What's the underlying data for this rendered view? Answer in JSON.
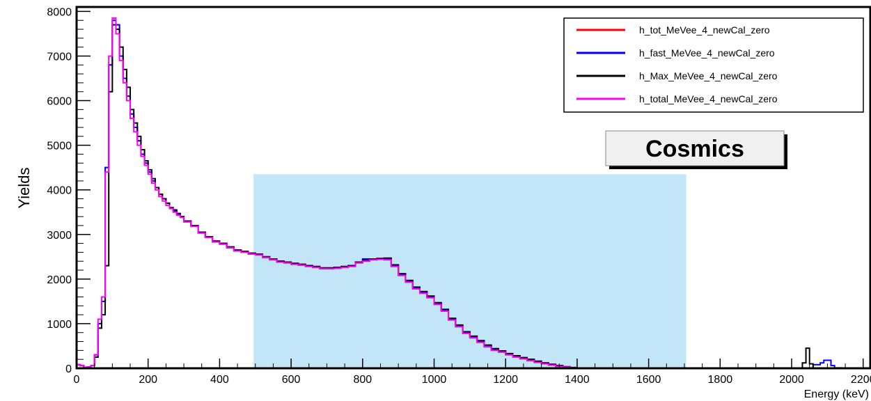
{
  "chart_data": {
    "type": "line",
    "title": "",
    "xlabel": "Energy (keV)",
    "ylabel": "Yields",
    "xlim": [
      0,
      2220
    ],
    "ylim": [
      0,
      8100
    ],
    "xticks": [
      0,
      200,
      400,
      600,
      800,
      1000,
      1200,
      1400,
      1600,
      1800,
      2000,
      2200
    ],
    "yticks": [
      0,
      1000,
      2000,
      3000,
      4000,
      5000,
      6000,
      7000,
      8000
    ],
    "grid": false,
    "legend_position": "top-right",
    "highlight_band": {
      "x0": 495,
      "x1": 1705,
      "y_top": 4350,
      "color": "#c2e5f8"
    },
    "annotation": {
      "text": "Cosmics",
      "position": "right, below legend"
    },
    "x": [
      0,
      10,
      20,
      30,
      40,
      50,
      60,
      70,
      80,
      90,
      100,
      110,
      120,
      130,
      140,
      150,
      160,
      170,
      180,
      190,
      200,
      210,
      220,
      230,
      240,
      250,
      260,
      270,
      280,
      290,
      300,
      320,
      340,
      360,
      380,
      400,
      420,
      440,
      460,
      480,
      500,
      520,
      540,
      560,
      580,
      600,
      620,
      640,
      660,
      680,
      700,
      720,
      740,
      760,
      780,
      800,
      820,
      840,
      860,
      880,
      900,
      920,
      940,
      960,
      980,
      1000,
      1020,
      1040,
      1060,
      1080,
      1100,
      1120,
      1140,
      1160,
      1180,
      1200,
      1220,
      1240,
      1260,
      1280,
      1300,
      1320,
      1340,
      1360,
      1380,
      1400,
      1500,
      1600,
      1700,
      1800,
      1900,
      2000,
      2030,
      2040,
      2050,
      2060,
      2080,
      2090,
      2100,
      2110,
      2120,
      2140,
      2200
    ],
    "series": [
      {
        "name": "h_tot_MeVee_4_newCal_zero",
        "color": "#ff0000",
        "values": [
          80,
          60,
          20,
          30,
          60,
          300,
          1000,
          1500,
          4500,
          6800,
          7800,
          7700,
          7000,
          6500,
          6100,
          5700,
          5400,
          5100,
          4800,
          4600,
          4400,
          4200,
          4050,
          3900,
          3800,
          3700,
          3600,
          3520,
          3450,
          3400,
          3300,
          3200,
          3050,
          2950,
          2850,
          2800,
          2720,
          2650,
          2620,
          2580,
          2560,
          2500,
          2450,
          2400,
          2380,
          2350,
          2330,
          2300,
          2280,
          2250,
          2250,
          2260,
          2280,
          2300,
          2380,
          2420,
          2450,
          2460,
          2450,
          2300,
          2100,
          1950,
          1800,
          1700,
          1600,
          1450,
          1300,
          1100,
          950,
          800,
          700,
          600,
          500,
          420,
          380,
          320,
          270,
          230,
          190,
          150,
          110,
          80,
          50,
          30,
          15,
          8,
          5,
          5,
          5,
          5,
          5,
          5,
          5,
          5,
          5,
          5,
          5,
          5,
          5,
          5,
          5,
          5,
          5
        ]
      },
      {
        "name": "h_fast_MeVee_4_newCal_zero",
        "color": "#0000ff",
        "values": [
          80,
          60,
          20,
          30,
          60,
          300,
          1000,
          1500,
          4500,
          6800,
          7800,
          7700,
          7000,
          6500,
          6100,
          5700,
          5400,
          5100,
          4800,
          4600,
          4400,
          4200,
          4050,
          3900,
          3800,
          3700,
          3600,
          3520,
          3450,
          3400,
          3300,
          3200,
          3050,
          2950,
          2850,
          2800,
          2720,
          2650,
          2620,
          2580,
          2560,
          2500,
          2450,
          2400,
          2380,
          2350,
          2330,
          2300,
          2280,
          2250,
          2250,
          2260,
          2280,
          2300,
          2380,
          2450,
          2450,
          2460,
          2450,
          2300,
          2100,
          1950,
          1800,
          1700,
          1600,
          1450,
          1300,
          1100,
          950,
          800,
          700,
          600,
          500,
          420,
          380,
          320,
          270,
          230,
          190,
          150,
          110,
          80,
          50,
          30,
          15,
          8,
          5,
          5,
          5,
          5,
          5,
          5,
          5,
          5,
          5,
          80,
          120,
          180,
          180,
          60,
          10,
          5,
          5
        ]
      },
      {
        "name": "h_Max_MeVee_4_newCal_zero",
        "color": "#000000",
        "values": [
          80,
          60,
          20,
          30,
          60,
          250,
          900,
          1200,
          2300,
          6200,
          7700,
          7600,
          7200,
          6700,
          6300,
          5800,
          5500,
          5200,
          4900,
          4650,
          4450,
          4250,
          4050,
          3900,
          3800,
          3700,
          3600,
          3550,
          3470,
          3400,
          3300,
          3200,
          3050,
          2950,
          2850,
          2800,
          2720,
          2650,
          2620,
          2580,
          2560,
          2500,
          2450,
          2400,
          2380,
          2350,
          2330,
          2300,
          2280,
          2250,
          2250,
          2260,
          2280,
          2300,
          2380,
          2420,
          2450,
          2460,
          2470,
          2320,
          2120,
          1970,
          1820,
          1720,
          1620,
          1470,
          1320,
          1120,
          970,
          820,
          720,
          620,
          520,
          440,
          390,
          330,
          280,
          240,
          200,
          160,
          120,
          90,
          60,
          35,
          18,
          8,
          5,
          5,
          5,
          5,
          5,
          5,
          120,
          450,
          100,
          5,
          5,
          5,
          5,
          5,
          5,
          5,
          5
        ]
      },
      {
        "name": "h_total_MeVee_4_newCal_zero",
        "color": "#ff00ff",
        "values": [
          80,
          60,
          20,
          30,
          60,
          300,
          1100,
          1600,
          4400,
          7000,
          7850,
          7500,
          6900,
          6400,
          6000,
          5600,
          5300,
          5000,
          4750,
          4550,
          4350,
          4150,
          4000,
          3850,
          3750,
          3650,
          3580,
          3500,
          3430,
          3380,
          3280,
          3180,
          3030,
          2930,
          2830,
          2780,
          2700,
          2630,
          2600,
          2560,
          2540,
          2480,
          2430,
          2380,
          2360,
          2330,
          2310,
          2280,
          2260,
          2230,
          2230,
          2240,
          2260,
          2280,
          2360,
          2400,
          2430,
          2440,
          2430,
          2280,
          2080,
          1930,
          1780,
          1680,
          1580,
          1430,
          1280,
          1080,
          930,
          780,
          680,
          580,
          480,
          400,
          360,
          300,
          250,
          210,
          170,
          130,
          100,
          70,
          40,
          25,
          12,
          6,
          5,
          5,
          5,
          5,
          5,
          5,
          5,
          5,
          5,
          5,
          5,
          5,
          5,
          5,
          5,
          5,
          5
        ]
      }
    ]
  }
}
